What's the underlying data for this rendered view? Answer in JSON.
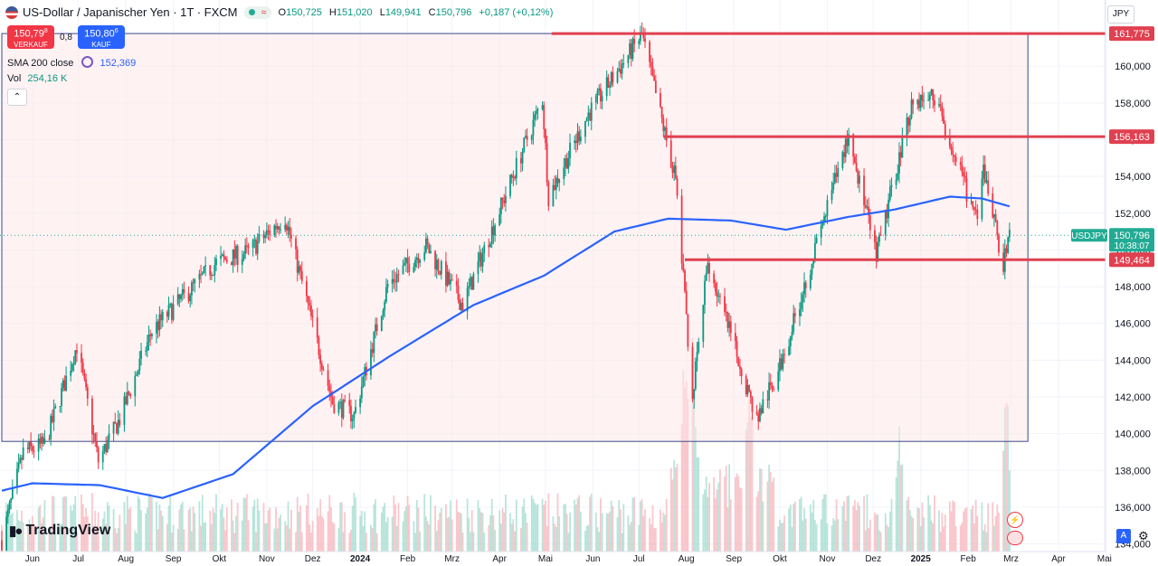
{
  "header": {
    "title": "US-Dollar / Japanischer Yen · 1T · FXCM",
    "open_k": "O",
    "open": "150,725",
    "high_k": "H",
    "high": "151,020",
    "low_k": "L",
    "low": "149,941",
    "close_k": "C",
    "close": "150,796",
    "change": "+0,187 (+0,12%)",
    "wave_icon": "≈"
  },
  "trade": {
    "sell_price": "150,79",
    "sell_sup": "8",
    "sell_label": "VERKAUF",
    "spread": "0,8",
    "buy_price": "150,80",
    "buy_sup": "6",
    "buy_label": "KAUF"
  },
  "indicators": {
    "sma_label": "SMA 200 close",
    "sma_value": "152,369",
    "vol_label": "Vol",
    "vol_value": "254,16 K",
    "collapse_icon": "chevron-up-icon"
  },
  "currency": "JPY",
  "logo": "TradingView",
  "colors": {
    "up": "#089981",
    "down": "#f23645",
    "sma": "#2962ff",
    "level": "#e04050",
    "box_fill": "#fde7ea",
    "box_border": "#3a4a8a"
  },
  "chart_data": {
    "type": "candlestick",
    "symbol": "USDJPY",
    "y_ticks": [
      "134,000",
      "136,000",
      "138,000",
      "140,000",
      "142,000",
      "144,000",
      "146,000",
      "148,000",
      "150,000",
      "152,000",
      "154,000",
      "156,000",
      "158,000",
      "160,000"
    ],
    "ylim": [
      132.8,
      163.6
    ],
    "x_ticks": [
      {
        "label": "Jun",
        "date": "2023-06-01"
      },
      {
        "label": "Jul",
        "date": "2023-07-01"
      },
      {
        "label": "Aug",
        "date": "2023-08-01"
      },
      {
        "label": "Sep",
        "date": "2023-09-01"
      },
      {
        "label": "Okt",
        "date": "2023-10-01"
      },
      {
        "label": "Nov",
        "date": "2023-11-01"
      },
      {
        "label": "Dez",
        "date": "2023-12-01"
      },
      {
        "label": "2024",
        "date": "2024-01-01",
        "bold": true
      },
      {
        "label": "Feb",
        "date": "2024-02-01"
      },
      {
        "label": "Mrz",
        "date": "2024-03-01"
      },
      {
        "label": "Apr",
        "date": "2024-04-01"
      },
      {
        "label": "Mai",
        "date": "2024-05-01"
      },
      {
        "label": "Jun",
        "date": "2024-06-01"
      },
      {
        "label": "Jul",
        "date": "2024-07-01"
      },
      {
        "label": "Aug",
        "date": "2024-08-01"
      },
      {
        "label": "Sep",
        "date": "2024-09-01"
      },
      {
        "label": "Okt",
        "date": "2024-10-01"
      },
      {
        "label": "Nov",
        "date": "2024-11-01"
      },
      {
        "label": "Dez",
        "date": "2024-12-01"
      },
      {
        "label": "2025",
        "date": "2025-01-01",
        "bold": true
      },
      {
        "label": "Feb",
        "date": "2025-02-01"
      },
      {
        "label": "Mrz",
        "date": "2025-03-01"
      },
      {
        "label": "Apr",
        "date": "2025-04-01"
      },
      {
        "label": "Mai",
        "date": "2025-05-01"
      }
    ],
    "price_path": [
      [
        "2023-05-12",
        134.2
      ],
      [
        "2023-05-26",
        139.0
      ],
      [
        "2023-06-09",
        139.4
      ],
      [
        "2023-06-30",
        144.8
      ],
      [
        "2023-07-14",
        138.5
      ],
      [
        "2023-07-28",
        140.8
      ],
      [
        "2023-08-18",
        145.6
      ],
      [
        "2023-09-29",
        149.3
      ],
      [
        "2023-10-20",
        149.9
      ],
      [
        "2023-11-13",
        151.8
      ],
      [
        "2023-12-14",
        141.7
      ],
      [
        "2023-12-28",
        141.0
      ],
      [
        "2024-01-19",
        148.1
      ],
      [
        "2024-02-13",
        150.2
      ],
      [
        "2024-03-08",
        147.0
      ],
      [
        "2024-03-28",
        151.3
      ],
      [
        "2024-04-29",
        158.2
      ],
      [
        "2024-05-03",
        152.9
      ],
      [
        "2024-05-29",
        157.4
      ],
      [
        "2024-07-03",
        161.7
      ],
      [
        "2024-07-25",
        153.8
      ],
      [
        "2024-08-05",
        142.0
      ],
      [
        "2024-08-15",
        149.3
      ],
      [
        "2024-09-16",
        140.8
      ],
      [
        "2024-10-01",
        143.6
      ],
      [
        "2024-10-31",
        152.0
      ],
      [
        "2024-11-15",
        156.3
      ],
      [
        "2024-12-03",
        149.6
      ],
      [
        "2024-12-26",
        158.0
      ],
      [
        "2025-01-10",
        158.4
      ],
      [
        "2025-02-07",
        151.4
      ],
      [
        "2025-02-11",
        154.4
      ],
      [
        "2025-02-24",
        149.2
      ],
      [
        "2025-02-28",
        150.8
      ]
    ],
    "sma200": {
      "name": "SMA 200 close",
      "path": [
        [
          "2023-05-12",
          136.9
        ],
        [
          "2023-06-01",
          137.3
        ],
        [
          "2023-07-15",
          137.2
        ],
        [
          "2023-08-25",
          136.5
        ],
        [
          "2023-10-10",
          137.8
        ],
        [
          "2023-12-01",
          141.5
        ],
        [
          "2024-01-20",
          144.2
        ],
        [
          "2024-03-15",
          147.0
        ],
        [
          "2024-04-30",
          148.6
        ],
        [
          "2024-06-15",
          151.0
        ],
        [
          "2024-07-20",
          151.7
        ],
        [
          "2024-08-30",
          151.6
        ],
        [
          "2024-10-05",
          151.1
        ],
        [
          "2024-11-15",
          151.8
        ],
        [
          "2024-12-15",
          152.2
        ],
        [
          "2025-01-20",
          152.9
        ],
        [
          "2025-02-10",
          152.8
        ],
        [
          "2025-02-28",
          152.37
        ]
      ]
    },
    "levels": [
      {
        "value": 161.775,
        "label": "161,775",
        "from": "2024-05-05"
      },
      {
        "value": 156.163,
        "label": "156,163",
        "from": "2024-07-17"
      },
      {
        "value": 149.464,
        "label": "149,464",
        "from": "2024-07-31"
      }
    ],
    "box": {
      "from": "2023-05-12",
      "to": "2025-03-12",
      "top": 161.775,
      "bottom": 139.58
    },
    "last_price": {
      "symbol_label": "USDJPY",
      "value": "150,796",
      "countdown": "10:38:07"
    },
    "volume": {
      "label": "Vol",
      "spikes": [
        [
          "2024-08-05",
          1.0
        ],
        [
          "2024-07-31",
          0.8
        ],
        [
          "2024-12-18",
          0.55
        ],
        [
          "2025-02-26",
          0.9
        ],
        [
          "2024-09-11",
          0.7
        ]
      ]
    }
  }
}
